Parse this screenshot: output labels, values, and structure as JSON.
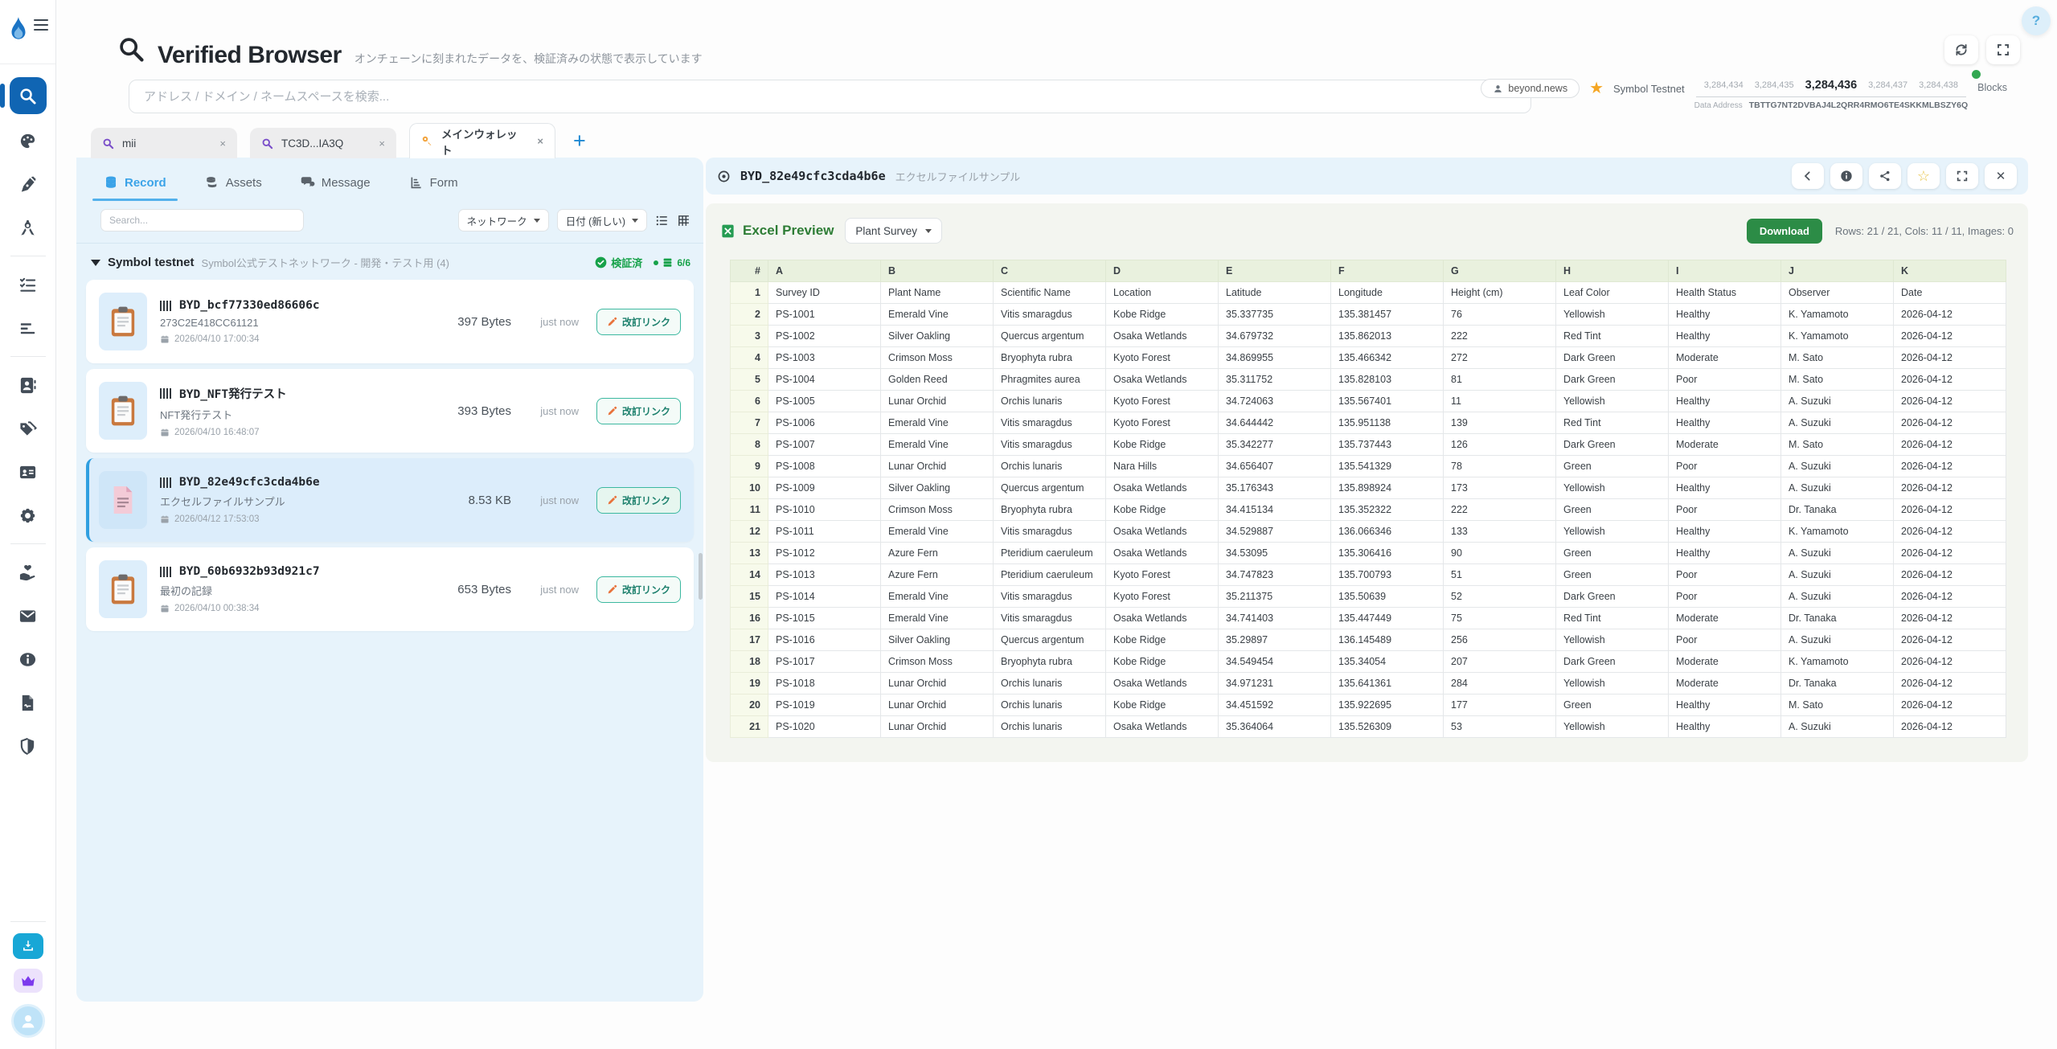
{
  "app": {
    "help_label": "?"
  },
  "sidebar": {
    "icons": [
      "flame-logo",
      "menu",
      "search",
      "palette",
      "pen",
      "compass",
      "tasks",
      "bar-chart",
      "contacts",
      "tags",
      "id-card",
      "settings",
      "donate",
      "mail",
      "info",
      "document",
      "shield",
      "download",
      "premium",
      "avatar"
    ]
  },
  "header": {
    "title": "Verified Browser",
    "subtitle": "オンチェーンに刻まれたデータを、検証済みの状態で表示しています",
    "search_placeholder": "アドレス / ドメイン / ネームスペースを検索...",
    "account": "beyond.news",
    "network_name": "Symbol Testnet",
    "blocks": [
      "3,284,434",
      "3,284,435",
      "3,284,436",
      "3,284,437",
      "3,284,438"
    ],
    "blocks_label": "Blocks",
    "data_address_label": "Data Address",
    "data_address": "TBTTG7NT2DVBAJ4L2QRR4RMO6TE4SKKMLBSZY6Q"
  },
  "browser_tabs": {
    "tabs": [
      {
        "label": "mii"
      },
      {
        "label": "TC3D...IA3Q"
      },
      {
        "label": "メインウォレット",
        "active": true
      }
    ],
    "close_label": "×",
    "new_tab_label": "+"
  },
  "left_panel": {
    "tabs": {
      "record": "Record",
      "assets": "Assets",
      "message": "Message",
      "form": "Form"
    },
    "search_placeholder": "Search...",
    "network_filter": "ネットワーク",
    "sort_filter": "日付 (新しい)",
    "group": {
      "name": "Symbol testnet",
      "description": "Symbol公式テストネットワーク - 開発・テスト用",
      "count": "(4)",
      "verified_label": "検証済",
      "ratio": "6/6"
    },
    "records": [
      {
        "name": "BYD_bcf77330ed86606c",
        "subtitle": "273C2E418CC61121",
        "date": "2026/04/10 17:00:34",
        "size": "397 Bytes",
        "time": "just now",
        "action": "改訂リンク"
      },
      {
        "name": "BYD_NFT発行テスト",
        "subtitle": "NFT発行テスト",
        "date": "2026/04/10 16:48:07",
        "size": "393 Bytes",
        "time": "just now",
        "action": "改訂リンク"
      },
      {
        "name": "BYD_82e49cfc3cda4b6e",
        "subtitle": "エクセルファイルサンプル",
        "date": "2026/04/12 17:53:03",
        "size": "8.53 KB",
        "time": "just now",
        "action": "改訂リンク",
        "selected": true
      },
      {
        "name": "BYD_60b6932b93d921c7",
        "subtitle": "最初の記録",
        "date": "2026/04/10 00:38:34",
        "size": "653 Bytes",
        "time": "just now",
        "action": "改訂リンク"
      }
    ]
  },
  "viewer": {
    "title": "BYD_82e49cfc3cda4b6e",
    "subtitle": "エクセルファイルサンプル",
    "preview_label": "Excel Preview",
    "sheet_name": "Plant Survey",
    "download_label": "Download",
    "stats": "Rows: 21 / 21, Cols: 11 / 11, Images: 0"
  },
  "spreadsheet": {
    "columns": [
      "#",
      "A",
      "B",
      "C",
      "D",
      "E",
      "F",
      "G",
      "H",
      "I",
      "J",
      "K"
    ],
    "rows": [
      [
        "1",
        "Survey ID",
        "Plant Name",
        "Scientific Name",
        "Location",
        "Latitude",
        "Longitude",
        "Height (cm)",
        "Leaf Color",
        "Health Status",
        "Observer",
        "Date"
      ],
      [
        "2",
        "PS-1001",
        "Emerald Vine",
        "Vitis smaragdus",
        "Kobe Ridge",
        "35.337735",
        "135.381457",
        "76",
        "Yellowish",
        "Healthy",
        "K. Yamamoto",
        "2026-04-12"
      ],
      [
        "3",
        "PS-1002",
        "Silver Oakling",
        "Quercus argentum",
        "Osaka Wetlands",
        "34.679732",
        "135.862013",
        "222",
        "Red Tint",
        "Healthy",
        "K. Yamamoto",
        "2026-04-12"
      ],
      [
        "4",
        "PS-1003",
        "Crimson Moss",
        "Bryophyta rubra",
        "Kyoto Forest",
        "34.869955",
        "135.466342",
        "272",
        "Dark Green",
        "Moderate",
        "M. Sato",
        "2026-04-12"
      ],
      [
        "5",
        "PS-1004",
        "Golden Reed",
        "Phragmites aurea",
        "Osaka Wetlands",
        "35.311752",
        "135.828103",
        "81",
        "Dark Green",
        "Poor",
        "M. Sato",
        "2026-04-12"
      ],
      [
        "6",
        "PS-1005",
        "Lunar Orchid",
        "Orchis lunaris",
        "Kyoto Forest",
        "34.724063",
        "135.567401",
        "11",
        "Yellowish",
        "Healthy",
        "A. Suzuki",
        "2026-04-12"
      ],
      [
        "7",
        "PS-1006",
        "Emerald Vine",
        "Vitis smaragdus",
        "Kyoto Forest",
        "34.644442",
        "135.951138",
        "139",
        "Red Tint",
        "Healthy",
        "A. Suzuki",
        "2026-04-12"
      ],
      [
        "8",
        "PS-1007",
        "Emerald Vine",
        "Vitis smaragdus",
        "Kobe Ridge",
        "35.342277",
        "135.737443",
        "126",
        "Dark Green",
        "Moderate",
        "M. Sato",
        "2026-04-12"
      ],
      [
        "9",
        "PS-1008",
        "Lunar Orchid",
        "Orchis lunaris",
        "Nara Hills",
        "34.656407",
        "135.541329",
        "78",
        "Green",
        "Poor",
        "A. Suzuki",
        "2026-04-12"
      ],
      [
        "10",
        "PS-1009",
        "Silver Oakling",
        "Quercus argentum",
        "Osaka Wetlands",
        "35.176343",
        "135.898924",
        "173",
        "Yellowish",
        "Healthy",
        "A. Suzuki",
        "2026-04-12"
      ],
      [
        "11",
        "PS-1010",
        "Crimson Moss",
        "Bryophyta rubra",
        "Kobe Ridge",
        "34.415134",
        "135.352322",
        "222",
        "Green",
        "Poor",
        "Dr. Tanaka",
        "2026-04-12"
      ],
      [
        "12",
        "PS-1011",
        "Emerald Vine",
        "Vitis smaragdus",
        "Osaka Wetlands",
        "34.529887",
        "136.066346",
        "133",
        "Yellowish",
        "Healthy",
        "K. Yamamoto",
        "2026-04-12"
      ],
      [
        "13",
        "PS-1012",
        "Azure Fern",
        "Pteridium caeruleum",
        "Osaka Wetlands",
        "34.53095",
        "135.306416",
        "90",
        "Green",
        "Healthy",
        "A. Suzuki",
        "2026-04-12"
      ],
      [
        "14",
        "PS-1013",
        "Azure Fern",
        "Pteridium caeruleum",
        "Kyoto Forest",
        "34.747823",
        "135.700793",
        "51",
        "Green",
        "Poor",
        "A. Suzuki",
        "2026-04-12"
      ],
      [
        "15",
        "PS-1014",
        "Emerald Vine",
        "Vitis smaragdus",
        "Kyoto Forest",
        "35.211375",
        "135.50639",
        "52",
        "Dark Green",
        "Poor",
        "A. Suzuki",
        "2026-04-12"
      ],
      [
        "16",
        "PS-1015",
        "Emerald Vine",
        "Vitis smaragdus",
        "Osaka Wetlands",
        "34.741403",
        "135.447449",
        "75",
        "Red Tint",
        "Moderate",
        "Dr. Tanaka",
        "2026-04-12"
      ],
      [
        "17",
        "PS-1016",
        "Silver Oakling",
        "Quercus argentum",
        "Kobe Ridge",
        "35.29897",
        "136.145489",
        "256",
        "Yellowish",
        "Poor",
        "A. Suzuki",
        "2026-04-12"
      ],
      [
        "18",
        "PS-1017",
        "Crimson Moss",
        "Bryophyta rubra",
        "Kobe Ridge",
        "34.549454",
        "135.34054",
        "207",
        "Dark Green",
        "Moderate",
        "K. Yamamoto",
        "2026-04-12"
      ],
      [
        "19",
        "PS-1018",
        "Lunar Orchid",
        "Orchis lunaris",
        "Osaka Wetlands",
        "34.971231",
        "135.641361",
        "284",
        "Yellowish",
        "Moderate",
        "Dr. Tanaka",
        "2026-04-12"
      ],
      [
        "20",
        "PS-1019",
        "Lunar Orchid",
        "Orchis lunaris",
        "Kobe Ridge",
        "34.451592",
        "135.922695",
        "177",
        "Green",
        "Healthy",
        "M. Sato",
        "2026-04-12"
      ],
      [
        "21",
        "PS-1020",
        "Lunar Orchid",
        "Orchis lunaris",
        "Osaka Wetlands",
        "35.364064",
        "135.526309",
        "53",
        "Yellowish",
        "Healthy",
        "A. Suzuki",
        "2026-04-12"
      ]
    ]
  }
}
